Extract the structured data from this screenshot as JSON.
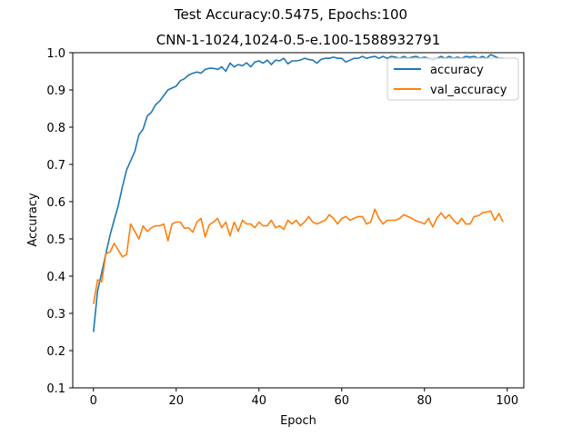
{
  "chart_data": {
    "type": "line",
    "title": "CNN-1-1024,1024-0.5-e.100-1588932791",
    "suptitle": "Test Accuracy:0.5475, Epochs:100",
    "xlabel": "Epoch",
    "ylabel": "Accuracy",
    "xlim": [
      -5,
      104
    ],
    "ylim": [
      0.1,
      1.0
    ],
    "xticks": [
      0,
      20,
      40,
      60,
      80,
      100
    ],
    "yticks": [
      0.1,
      0.2,
      0.3,
      0.4,
      0.5,
      0.6,
      0.7,
      0.8,
      0.9,
      1.0
    ],
    "grid": false,
    "legend_position": "top-right",
    "x": [
      0,
      1,
      2,
      3,
      4,
      5,
      6,
      7,
      8,
      9,
      10,
      11,
      12,
      13,
      14,
      15,
      16,
      17,
      18,
      19,
      20,
      21,
      22,
      23,
      24,
      25,
      26,
      27,
      28,
      29,
      30,
      31,
      32,
      33,
      34,
      35,
      36,
      37,
      38,
      39,
      40,
      41,
      42,
      43,
      44,
      45,
      46,
      47,
      48,
      49,
      50,
      51,
      52,
      53,
      54,
      55,
      56,
      57,
      58,
      59,
      60,
      61,
      62,
      63,
      64,
      65,
      66,
      67,
      68,
      69,
      70,
      71,
      72,
      73,
      74,
      75,
      76,
      77,
      78,
      79,
      80,
      81,
      82,
      83,
      84,
      85,
      86,
      87,
      88,
      89,
      90,
      91,
      92,
      93,
      94,
      95,
      96,
      97,
      98,
      99
    ],
    "series": [
      {
        "name": "accuracy",
        "color": "#1f77b4",
        "values": [
          0.25,
          0.36,
          0.41,
          0.46,
          0.51,
          0.55,
          0.59,
          0.64,
          0.685,
          0.71,
          0.735,
          0.78,
          0.795,
          0.83,
          0.84,
          0.86,
          0.87,
          0.885,
          0.9,
          0.905,
          0.91,
          0.925,
          0.93,
          0.94,
          0.945,
          0.948,
          0.945,
          0.955,
          0.958,
          0.958,
          0.955,
          0.962,
          0.95,
          0.972,
          0.962,
          0.968,
          0.965,
          0.973,
          0.962,
          0.975,
          0.978,
          0.972,
          0.98,
          0.968,
          0.98,
          0.978,
          0.985,
          0.97,
          0.978,
          0.978,
          0.98,
          0.985,
          0.982,
          0.98,
          0.972,
          0.982,
          0.985,
          0.985,
          0.988,
          0.985,
          0.985,
          0.975,
          0.98,
          0.985,
          0.985,
          0.99,
          0.985,
          0.988,
          0.99,
          0.985,
          0.99,
          0.985,
          0.99,
          0.988,
          0.985,
          0.99,
          0.985,
          0.988,
          0.99,
          0.985,
          0.988,
          0.985,
          0.98,
          0.985,
          0.99,
          0.985,
          0.99,
          0.985,
          0.988,
          0.985,
          0.99,
          0.988,
          0.99,
          0.985,
          0.99,
          0.985,
          0.995,
          0.99,
          0.985,
          0.985
        ]
      },
      {
        "name": "val_accuracy",
        "color": "#ff7f0e",
        "values": [
          0.325,
          0.39,
          0.385,
          0.46,
          0.465,
          0.488,
          0.47,
          0.452,
          0.458,
          0.54,
          0.52,
          0.5,
          0.535,
          0.52,
          0.53,
          0.535,
          0.535,
          0.54,
          0.495,
          0.54,
          0.545,
          0.545,
          0.528,
          0.53,
          0.518,
          0.545,
          0.555,
          0.505,
          0.538,
          0.545,
          0.555,
          0.53,
          0.545,
          0.508,
          0.545,
          0.52,
          0.55,
          0.54,
          0.54,
          0.53,
          0.545,
          0.535,
          0.535,
          0.55,
          0.53,
          0.535,
          0.525,
          0.55,
          0.54,
          0.55,
          0.535,
          0.545,
          0.56,
          0.545,
          0.54,
          0.545,
          0.55,
          0.565,
          0.555,
          0.54,
          0.555,
          0.56,
          0.55,
          0.555,
          0.56,
          0.56,
          0.54,
          0.545,
          0.58,
          0.555,
          0.54,
          0.55,
          0.55,
          0.55,
          0.555,
          0.565,
          0.56,
          0.555,
          0.548,
          0.545,
          0.54,
          0.555,
          0.532,
          0.555,
          0.57,
          0.555,
          0.565,
          0.55,
          0.54,
          0.555,
          0.54,
          0.54,
          0.56,
          0.562,
          0.57,
          0.572,
          0.575,
          0.55,
          0.568,
          0.545
        ]
      }
    ]
  }
}
